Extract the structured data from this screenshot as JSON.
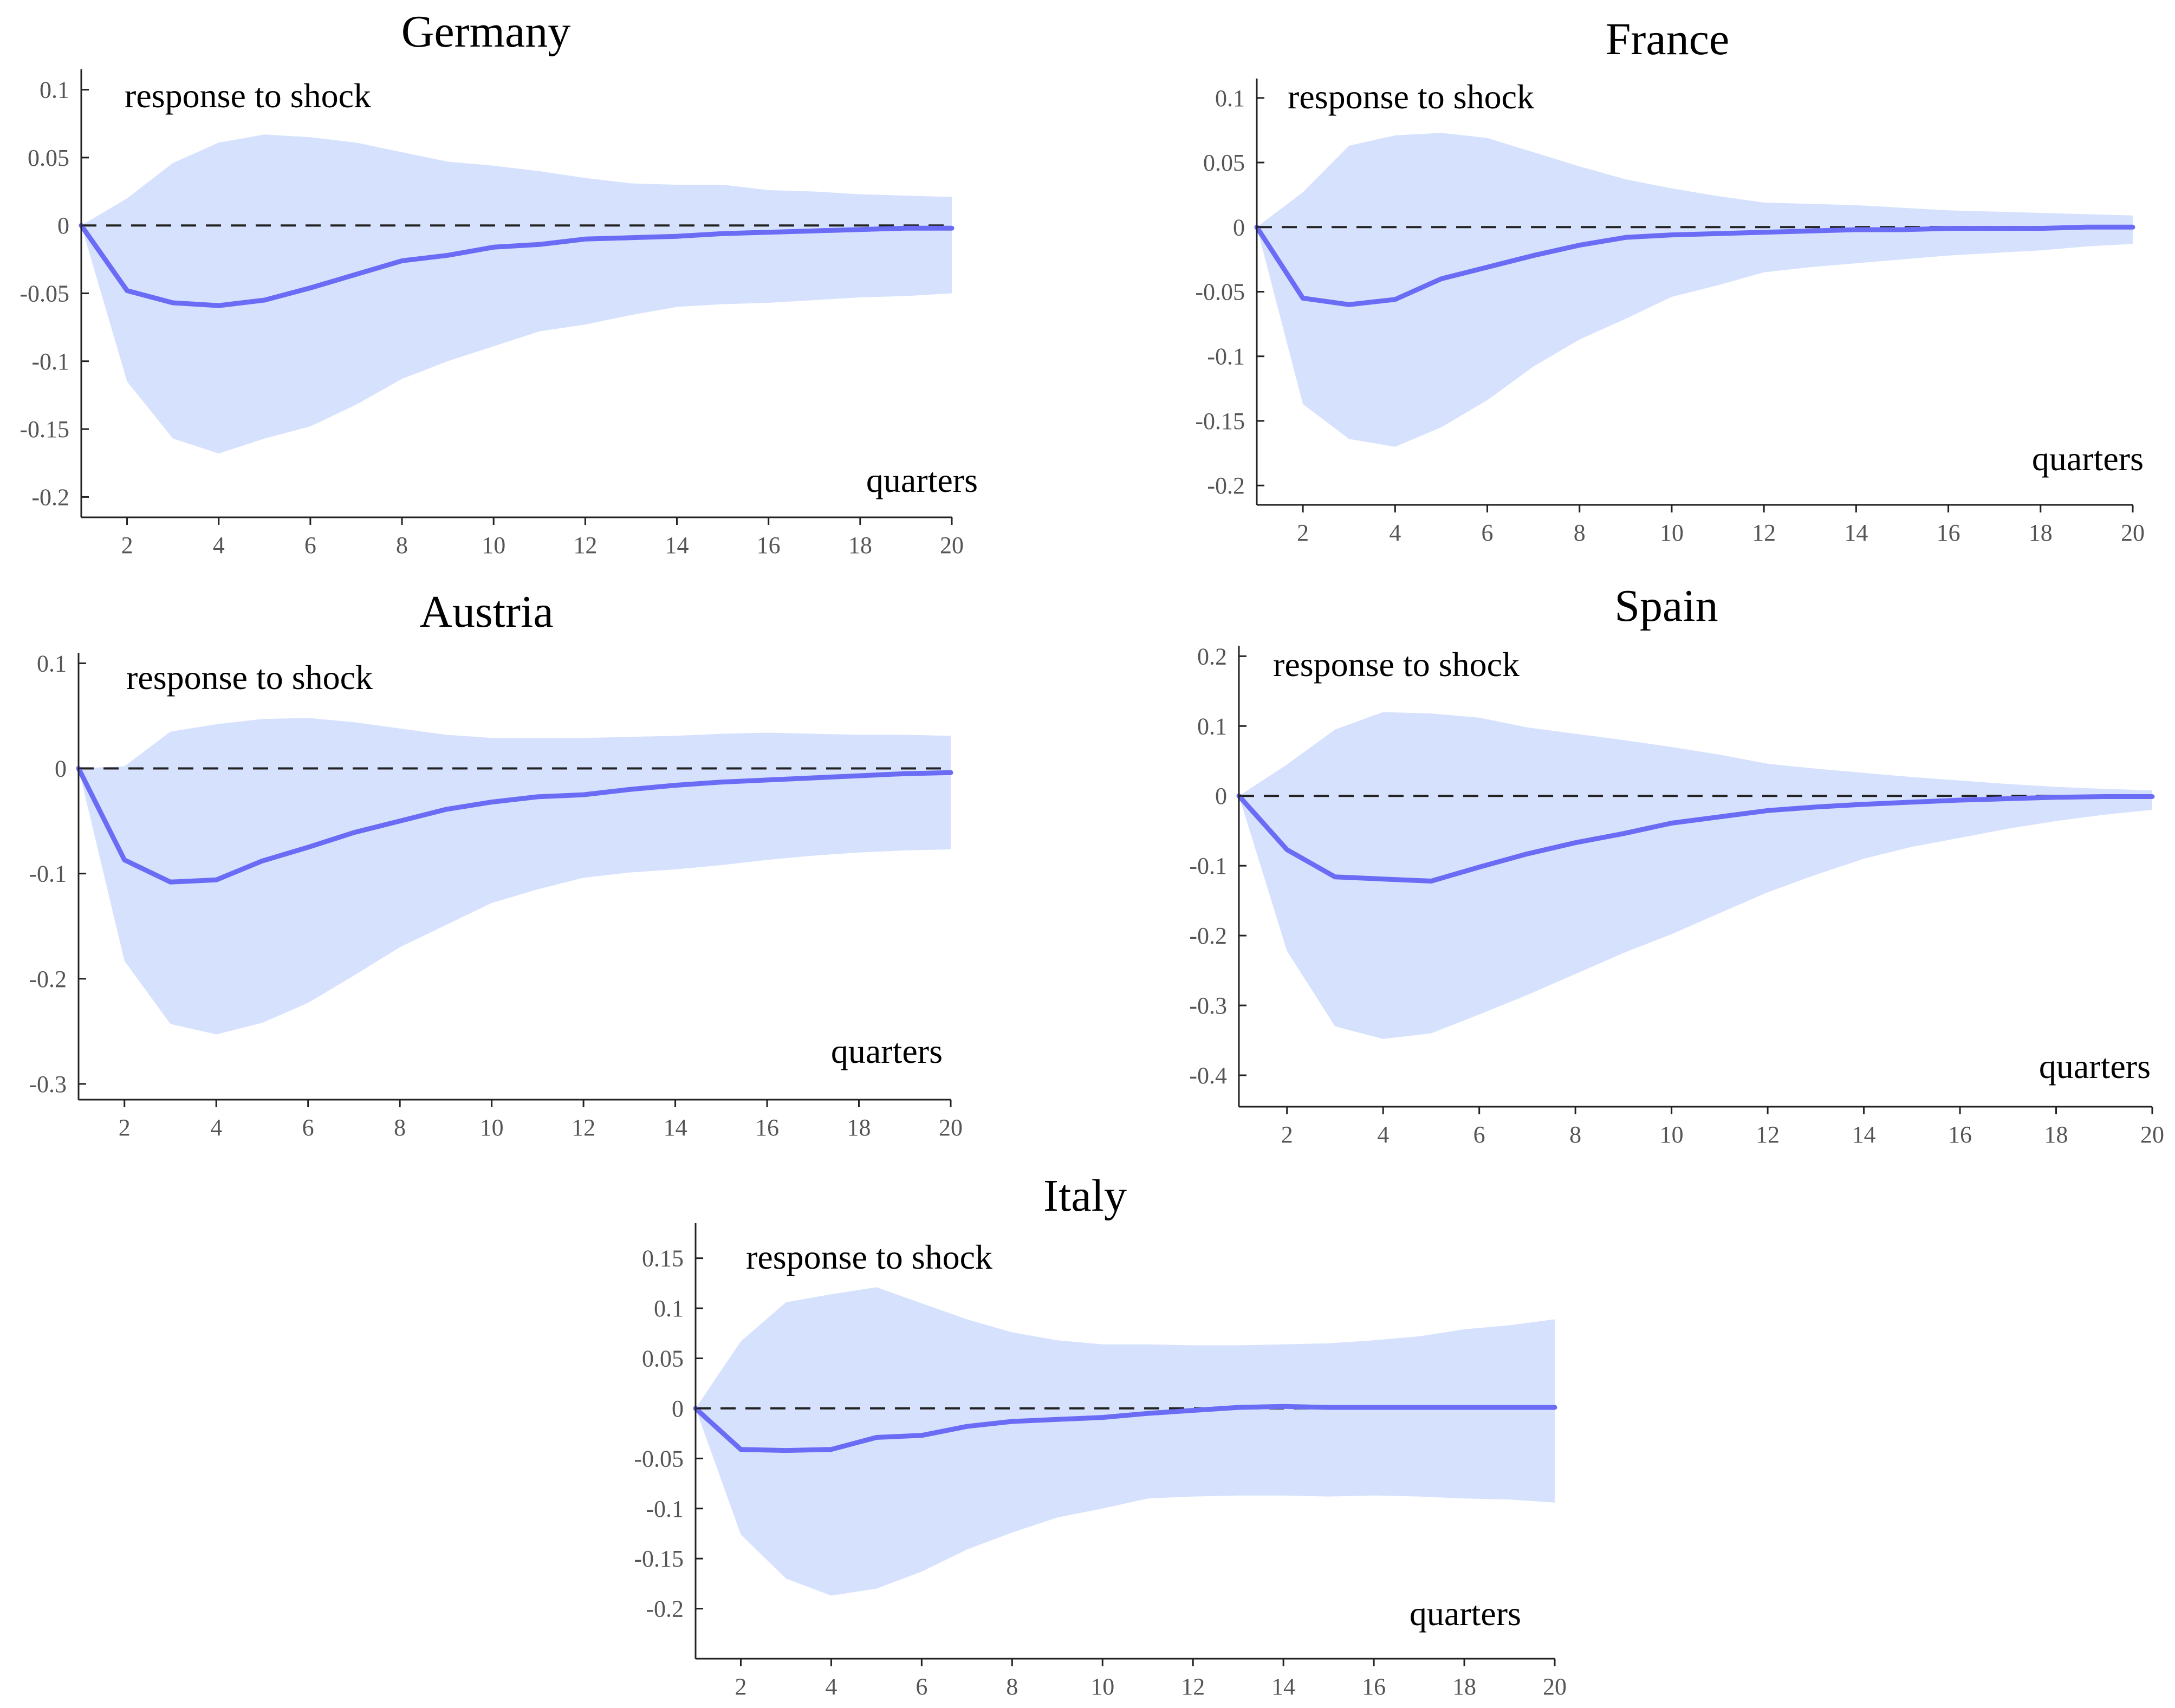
{
  "colors": {
    "band": "#d6e2fd",
    "line": "#6b6cf5",
    "zero": "#222222"
  },
  "chart_data": [
    {
      "type": "line",
      "title": "Germany",
      "annotation_top": "response to shock",
      "xlabel": "quarters",
      "xlim": [
        1,
        20
      ],
      "ylim": [
        -0.215,
        0.115
      ],
      "xticks": [
        2,
        4,
        6,
        8,
        10,
        12,
        14,
        16,
        18,
        20
      ],
      "yticks": [
        0.1,
        0.05,
        0,
        -0.05,
        -0.1,
        -0.15,
        -0.2
      ],
      "ytick_labels": [
        "0.1",
        "0.05",
        "0",
        "-0.05",
        "-0.1",
        "-0.15",
        "-0.2"
      ],
      "x": [
        1,
        2,
        3,
        4,
        5,
        6,
        7,
        8,
        9,
        10,
        11,
        12,
        13,
        14,
        15,
        16,
        17,
        18,
        19,
        20
      ],
      "series": [
        {
          "values": [
            0,
            -0.048,
            -0.057,
            -0.059,
            -0.055,
            -0.046,
            -0.036,
            -0.026,
            -0.022,
            -0.016,
            -0.014,
            -0.01,
            -0.009,
            -0.008,
            -0.006,
            -0.005,
            -0.004,
            -0.003,
            -0.002,
            -0.002
          ]
        }
      ],
      "band": {
        "upper": [
          0,
          0.02,
          0.046,
          0.061,
          0.067,
          0.065,
          0.061,
          0.054,
          0.047,
          0.044,
          0.04,
          0.035,
          0.031,
          0.03,
          0.03,
          0.026,
          0.025,
          0.023,
          0.022,
          0.021
        ],
        "lower": [
          0,
          -0.115,
          -0.157,
          -0.168,
          -0.157,
          -0.148,
          -0.132,
          -0.113,
          -0.1,
          -0.089,
          -0.078,
          -0.073,
          -0.066,
          -0.06,
          -0.058,
          -0.057,
          -0.055,
          -0.053,
          -0.052,
          -0.05
        ]
      }
    },
    {
      "type": "line",
      "title": "France",
      "annotation_top": "response to shock",
      "xlabel": "quarters",
      "xlim": [
        1,
        20
      ],
      "ylim": [
        -0.215,
        0.115
      ],
      "xticks": [
        2,
        4,
        6,
        8,
        10,
        12,
        14,
        16,
        18,
        20
      ],
      "yticks": [
        0.1,
        0.05,
        0,
        -0.05,
        -0.1,
        -0.15,
        -0.2
      ],
      "ytick_labels": [
        "0.1",
        "0.05",
        "0",
        "-0.05",
        "-0.1",
        "-0.15",
        "-0.2"
      ],
      "x": [
        1,
        2,
        3,
        4,
        5,
        6,
        7,
        8,
        9,
        10,
        11,
        12,
        13,
        14,
        15,
        16,
        17,
        18,
        19,
        20
      ],
      "series": [
        {
          "values": [
            0,
            -0.055,
            -0.06,
            -0.056,
            -0.04,
            -0.031,
            -0.022,
            -0.014,
            -0.008,
            -0.006,
            -0.005,
            -0.004,
            -0.003,
            -0.002,
            -0.002,
            -0.001,
            -0.001,
            -0.001,
            0,
            0
          ]
        }
      ],
      "band": {
        "upper": [
          0,
          0.027,
          0.063,
          0.071,
          0.073,
          0.069,
          0.058,
          0.047,
          0.037,
          0.03,
          0.024,
          0.019,
          0.018,
          0.017,
          0.015,
          0.013,
          0.012,
          0.011,
          0.01,
          0.009
        ],
        "lower": [
          0,
          -0.137,
          -0.164,
          -0.17,
          -0.155,
          -0.134,
          -0.108,
          -0.087,
          -0.071,
          -0.054,
          -0.045,
          -0.035,
          -0.031,
          -0.028,
          -0.025,
          -0.022,
          -0.02,
          -0.018,
          -0.015,
          -0.013
        ]
      }
    },
    {
      "type": "line",
      "title": "Austria",
      "annotation_top": "response to shock",
      "xlabel": "quarters",
      "xlim": [
        1,
        20
      ],
      "ylim": [
        -0.315,
        0.11
      ],
      "xticks": [
        2,
        4,
        6,
        8,
        10,
        12,
        14,
        16,
        18,
        20
      ],
      "yticks": [
        0.1,
        0,
        -0.1,
        -0.2,
        -0.3
      ],
      "ytick_labels": [
        "0.1",
        "0",
        "-0.1",
        "-0.2",
        "-0.3"
      ],
      "x": [
        1,
        2,
        3,
        4,
        5,
        6,
        7,
        8,
        9,
        10,
        11,
        12,
        13,
        14,
        15,
        16,
        17,
        18,
        19,
        20
      ],
      "series": [
        {
          "values": [
            0,
            -0.087,
            -0.108,
            -0.106,
            -0.088,
            -0.075,
            -0.061,
            -0.05,
            -0.039,
            -0.032,
            -0.027,
            -0.025,
            -0.02,
            -0.016,
            -0.013,
            -0.011,
            -0.009,
            -0.007,
            -0.005,
            -0.004
          ]
        }
      ],
      "band": {
        "upper": [
          0,
          0.002,
          0.035,
          0.042,
          0.047,
          0.048,
          0.044,
          0.038,
          0.032,
          0.029,
          0.029,
          0.029,
          0.03,
          0.031,
          0.033,
          0.034,
          0.033,
          0.032,
          0.032,
          0.031
        ],
        "lower": [
          0,
          -0.183,
          -0.243,
          -0.253,
          -0.242,
          -0.223,
          -0.197,
          -0.17,
          -0.149,
          -0.128,
          -0.115,
          -0.104,
          -0.099,
          -0.096,
          -0.092,
          -0.087,
          -0.083,
          -0.08,
          -0.078,
          -0.077
        ]
      }
    },
    {
      "type": "line",
      "title": "Spain",
      "annotation_top": "response to shock",
      "xlabel": "quarters",
      "xlim": [
        1,
        20
      ],
      "ylim": [
        -0.445,
        0.215
      ],
      "xticks": [
        2,
        4,
        6,
        8,
        10,
        12,
        14,
        16,
        18,
        20
      ],
      "yticks": [
        0.2,
        0.1,
        0,
        -0.1,
        -0.2,
        -0.3,
        -0.4
      ],
      "ytick_labels": [
        "0.2",
        "0.1",
        "0",
        "-0.1",
        "-0.2",
        "-0.3",
        "-0.4"
      ],
      "x": [
        1,
        2,
        3,
        4,
        5,
        6,
        7,
        8,
        9,
        10,
        11,
        12,
        13,
        14,
        15,
        16,
        17,
        18,
        19,
        20
      ],
      "series": [
        {
          "values": [
            0,
            -0.077,
            -0.116,
            -0.119,
            -0.122,
            -0.102,
            -0.083,
            -0.067,
            -0.054,
            -0.039,
            -0.03,
            -0.021,
            -0.016,
            -0.012,
            -0.009,
            -0.006,
            -0.004,
            -0.002,
            -0.001,
            -0.001
          ]
        }
      ],
      "band": {
        "upper": [
          0,
          0.045,
          0.095,
          0.12,
          0.118,
          0.112,
          0.098,
          0.089,
          0.08,
          0.07,
          0.059,
          0.046,
          0.039,
          0.033,
          0.027,
          0.022,
          0.017,
          0.013,
          0.01,
          0.008
        ],
        "lower": [
          0,
          -0.222,
          -0.33,
          -0.348,
          -0.34,
          -0.313,
          -0.285,
          -0.255,
          -0.225,
          -0.198,
          -0.168,
          -0.138,
          -0.113,
          -0.09,
          -0.073,
          -0.06,
          -0.047,
          -0.036,
          -0.027,
          -0.02
        ]
      }
    },
    {
      "type": "line",
      "title": "Italy",
      "annotation_top": "response to shock",
      "xlabel": "quarters",
      "xlim": [
        1,
        20
      ],
      "ylim": [
        -0.25,
        0.185
      ],
      "xticks": [
        2,
        4,
        6,
        8,
        10,
        12,
        14,
        16,
        18,
        20
      ],
      "yticks": [
        0.15,
        0.1,
        0.05,
        0,
        -0.05,
        -0.1,
        -0.15,
        -0.2
      ],
      "ytick_labels": [
        "0.15",
        "0.1",
        "0.05",
        "0",
        "-0.05",
        "-0.1",
        "-0.15",
        "-0.2"
      ],
      "x": [
        1,
        2,
        3,
        4,
        5,
        6,
        7,
        8,
        9,
        10,
        11,
        12,
        13,
        14,
        15,
        16,
        17,
        18,
        19,
        20
      ],
      "series": [
        {
          "values": [
            0,
            -0.041,
            -0.042,
            -0.041,
            -0.029,
            -0.027,
            -0.018,
            -0.013,
            -0.011,
            -0.009,
            -0.005,
            -0.002,
            0.001,
            0.002,
            0.001,
            0.001,
            0.001,
            0.001,
            0.001,
            0.001
          ]
        }
      ],
      "band": {
        "upper": [
          0,
          0.067,
          0.106,
          0.114,
          0.121,
          0.105,
          0.089,
          0.076,
          0.068,
          0.064,
          0.064,
          0.063,
          0.063,
          0.064,
          0.065,
          0.068,
          0.072,
          0.079,
          0.083,
          0.089
        ],
        "lower": [
          0,
          -0.126,
          -0.17,
          -0.187,
          -0.18,
          -0.163,
          -0.141,
          -0.124,
          -0.109,
          -0.1,
          -0.09,
          -0.088,
          -0.087,
          -0.087,
          -0.088,
          -0.087,
          -0.088,
          -0.09,
          -0.091,
          -0.094
        ]
      }
    }
  ]
}
